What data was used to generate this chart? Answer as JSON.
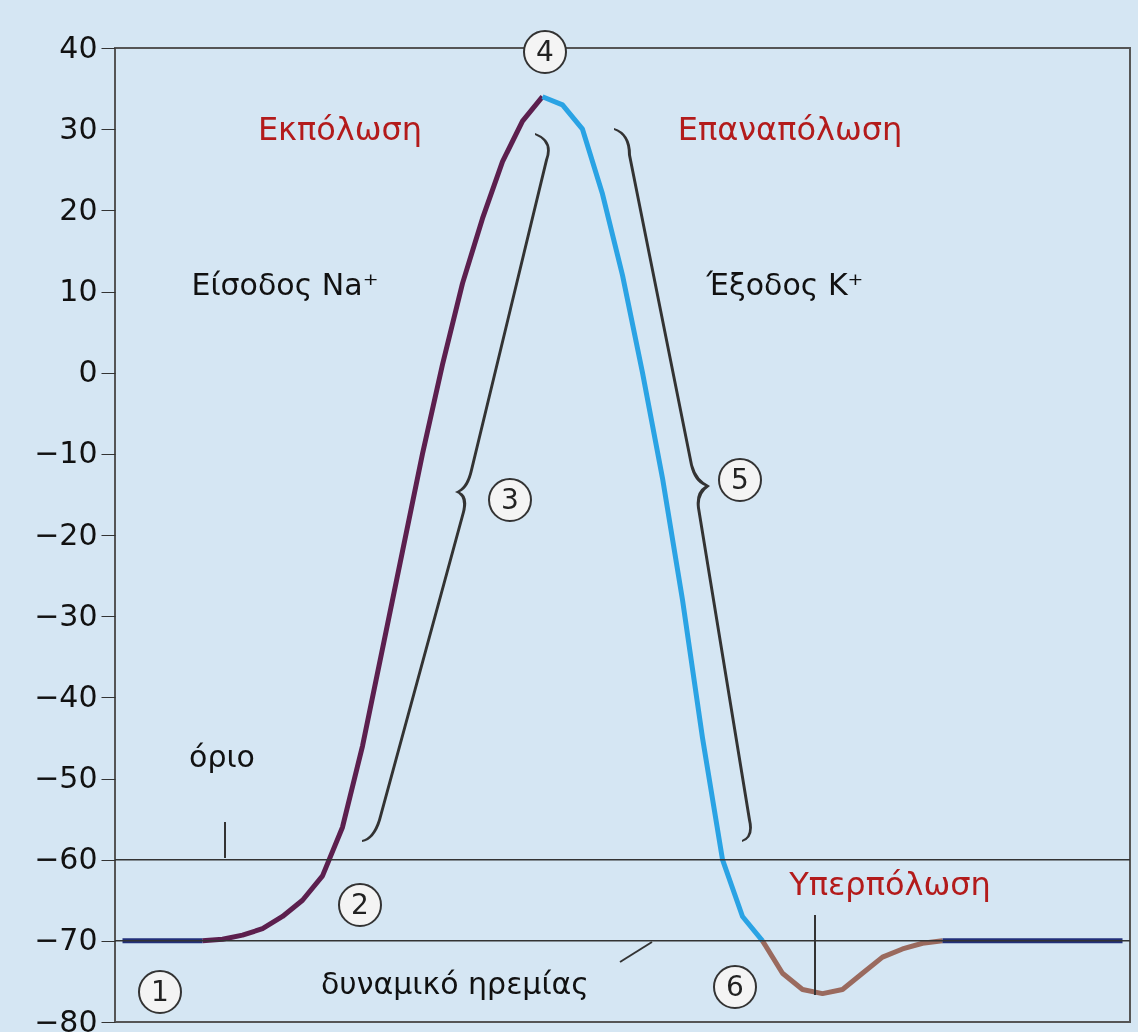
{
  "chart_data": {
    "type": "line",
    "categories": [
      null,
      null,
      null,
      null,
      null,
      null,
      null,
      null,
      null,
      null,
      null,
      null,
      null,
      null,
      null,
      null,
      null,
      null,
      null,
      null,
      null,
      null,
      null,
      null,
      null,
      null,
      null,
      null,
      null,
      null,
      null,
      null,
      null,
      null,
      null,
      null,
      null,
      null,
      null,
      null,
      null,
      null,
      null,
      null,
      null,
      null,
      null,
      null,
      null,
      null,
      null
    ],
    "series": [
      {
        "color": "#22307a",
        "values": [
          -70,
          -70,
          -70,
          -70,
          -70,
          null,
          null,
          null,
          null,
          null,
          null,
          null,
          null,
          null,
          null,
          null,
          null,
          null,
          null,
          null,
          null,
          null,
          null,
          null,
          null,
          null,
          null,
          null,
          null,
          null,
          null,
          null,
          null,
          null,
          null,
          null,
          null,
          null,
          null,
          null,
          null,
          null,
          null,
          null,
          null,
          null,
          null,
          null,
          null,
          null,
          null
        ]
      },
      {
        "color": "#5c1f4e",
        "values": [
          null,
          null,
          null,
          null,
          -70,
          -69.8,
          -69.3,
          -68.5,
          -67,
          -65,
          -62,
          -56,
          -46,
          -34,
          -22,
          -10,
          1,
          11,
          19,
          26,
          31,
          34,
          null,
          null,
          null,
          null,
          null,
          null,
          null,
          null,
          null,
          null,
          null,
          null,
          null,
          null,
          null,
          null,
          null,
          null,
          null,
          null,
          null,
          null,
          null,
          null,
          null,
          null,
          null,
          null,
          null
        ]
      },
      {
        "color": "#2aa3e4",
        "values": [
          null,
          null,
          null,
          null,
          null,
          null,
          null,
          null,
          null,
          null,
          null,
          null,
          null,
          null,
          null,
          null,
          null,
          null,
          null,
          null,
          null,
          34,
          33,
          30,
          22,
          12,
          0,
          -13,
          -28,
          -45,
          -60,
          -67,
          -70,
          null,
          null,
          null,
          null,
          null,
          null,
          null,
          null,
          null,
          null,
          null,
          null,
          null,
          null,
          null,
          null,
          null,
          null
        ]
      },
      {
        "color": "#9a6a5e",
        "values": [
          null,
          null,
          null,
          null,
          null,
          null,
          null,
          null,
          null,
          null,
          null,
          null,
          null,
          null,
          null,
          null,
          null,
          null,
          null,
          null,
          null,
          null,
          null,
          null,
          null,
          null,
          null,
          null,
          null,
          null,
          null,
          null,
          -70,
          -74,
          -76,
          -76.5,
          -76,
          -74,
          -72,
          -71,
          -70.3,
          -70,
          null,
          null,
          null,
          null,
          null,
          null,
          null,
          null,
          null
        ]
      },
      {
        "color": "#22307a",
        "values": [
          null,
          null,
          null,
          null,
          null,
          null,
          null,
          null,
          null,
          null,
          null,
          null,
          null,
          null,
          null,
          null,
          null,
          null,
          null,
          null,
          null,
          null,
          null,
          null,
          null,
          null,
          null,
          null,
          null,
          null,
          null,
          null,
          null,
          null,
          null,
          null,
          null,
          null,
          null,
          null,
          null,
          -70,
          -70,
          -70,
          -70,
          -70,
          -70,
          -70,
          -70,
          -70,
          -70
        ]
      }
    ],
    "ylim": [
      -80,
      40
    ],
    "yticks": [
      -80,
      -70,
      -60,
      -50,
      -40,
      -30,
      -20,
      -10,
      0,
      10,
      20,
      30,
      40
    ],
    "tick_labels": "y",
    "ref_lines": [
      {
        "axis": "y",
        "value": -60,
        "label": "όριο"
      },
      {
        "axis": "y",
        "value": -70,
        "label": "δυναμικό ηρεμίας"
      }
    ],
    "annotations": [
      "Εκπόλωση",
      "Επαναπόλωση",
      "Υπερπόλωση",
      "Είσοδος Na⁺",
      "Έξοδος K⁺",
      "1",
      "2",
      "3",
      "4",
      "5",
      "6"
    ]
  }
}
